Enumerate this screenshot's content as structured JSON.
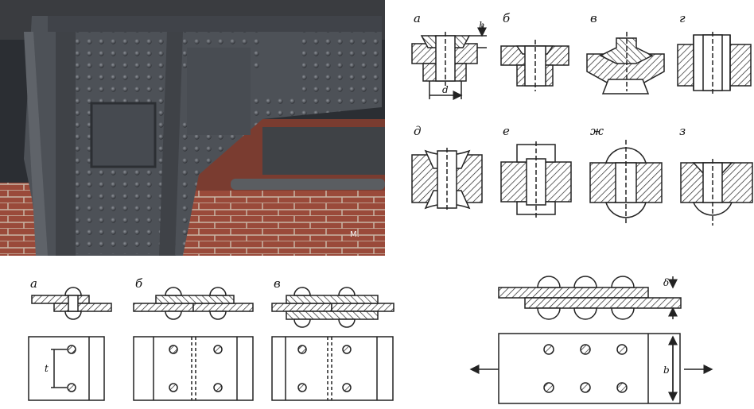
{
  "rivet_types": {
    "a": "а",
    "b": "б",
    "v": "в",
    "g": "г",
    "d": "д",
    "e": "е",
    "zh": "ж",
    "z": "з",
    "dim_h": "h",
    "dim_d": "d"
  },
  "lap_joints": {
    "a": "а",
    "b": "б",
    "v": "в",
    "dim_t": "t"
  },
  "tension_joint": {
    "dim_delta": "δ",
    "dim_b": "b"
  },
  "photo": {
    "watermark": "M."
  },
  "colors": {
    "steel": "#4d5157",
    "brick": "#9a4a3a",
    "hatch": "#222222"
  }
}
